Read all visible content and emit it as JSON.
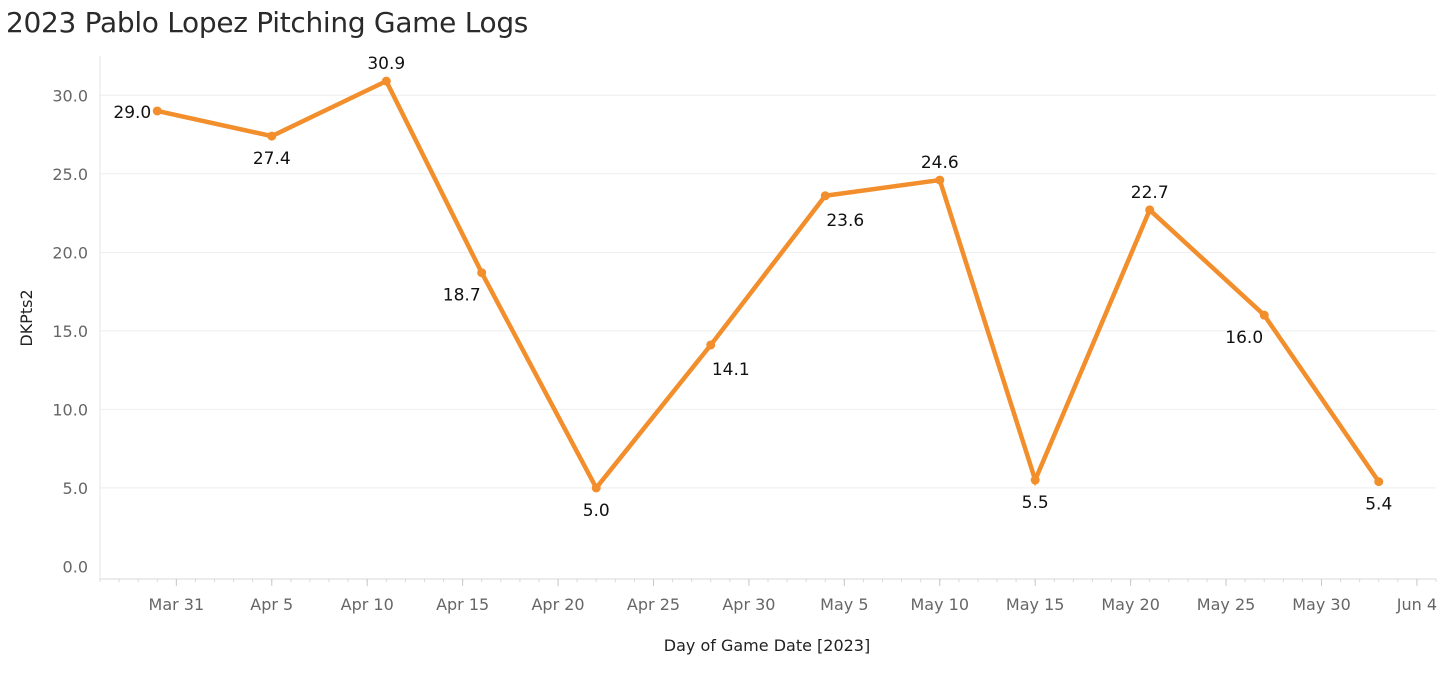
{
  "chart_data": {
    "type": "line",
    "title": "2023 Pablo Lopez Pitching Game Logs",
    "xlabel": "Day of Game Date [2023]",
    "ylabel": "DKPts2",
    "x_tick_labels": [
      {
        "date": "2023-03-31",
        "label": "Mar 31"
      },
      {
        "date": "2023-04-05",
        "label": "Apr 5"
      },
      {
        "date": "2023-04-10",
        "label": "Apr 10"
      },
      {
        "date": "2023-04-15",
        "label": "Apr 15"
      },
      {
        "date": "2023-04-20",
        "label": "Apr 20"
      },
      {
        "date": "2023-04-25",
        "label": "Apr 25"
      },
      {
        "date": "2023-04-30",
        "label": "Apr 30"
      },
      {
        "date": "2023-05-05",
        "label": "May 5"
      },
      {
        "date": "2023-05-10",
        "label": "May 10"
      },
      {
        "date": "2023-05-15",
        "label": "May 15"
      },
      {
        "date": "2023-05-20",
        "label": "May 20"
      },
      {
        "date": "2023-05-25",
        "label": "May 25"
      },
      {
        "date": "2023-05-30",
        "label": "May 30"
      },
      {
        "date": "2023-06-04",
        "label": "Jun 4"
      }
    ],
    "xlim": [
      "2023-03-27",
      "2023-06-05"
    ],
    "y_ticks": [
      0,
      5,
      10,
      15,
      20,
      25,
      30
    ],
    "y_tick_labels": [
      "0.0",
      "5.0",
      "10.0",
      "15.0",
      "20.0",
      "25.0",
      "30.0"
    ],
    "ylim": [
      -0.8,
      32.5
    ],
    "grid": {
      "horizontal": true,
      "vertical": false
    },
    "color": "#f28e2b",
    "points": [
      {
        "x": "2023-03-30",
        "y": 29.0,
        "label": "29.0"
      },
      {
        "x": "2023-04-05",
        "y": 27.4,
        "label": "27.4"
      },
      {
        "x": "2023-04-11",
        "y": 30.9,
        "label": "30.9"
      },
      {
        "x": "2023-04-16",
        "y": 18.7,
        "label": "18.7"
      },
      {
        "x": "2023-04-22",
        "y": 5.0,
        "label": "5.0"
      },
      {
        "x": "2023-04-28",
        "y": 14.1,
        "label": "14.1"
      },
      {
        "x": "2023-05-04",
        "y": 23.6,
        "label": "23.6"
      },
      {
        "x": "2023-05-10",
        "y": 24.6,
        "label": "24.6"
      },
      {
        "x": "2023-05-15",
        "y": 5.5,
        "label": "5.5"
      },
      {
        "x": "2023-05-21",
        "y": 22.7,
        "label": "22.7"
      },
      {
        "x": "2023-05-27",
        "y": 16.0,
        "label": "16.0"
      },
      {
        "x": "2023-06-02",
        "y": 5.4,
        "label": "5.4"
      }
    ]
  }
}
